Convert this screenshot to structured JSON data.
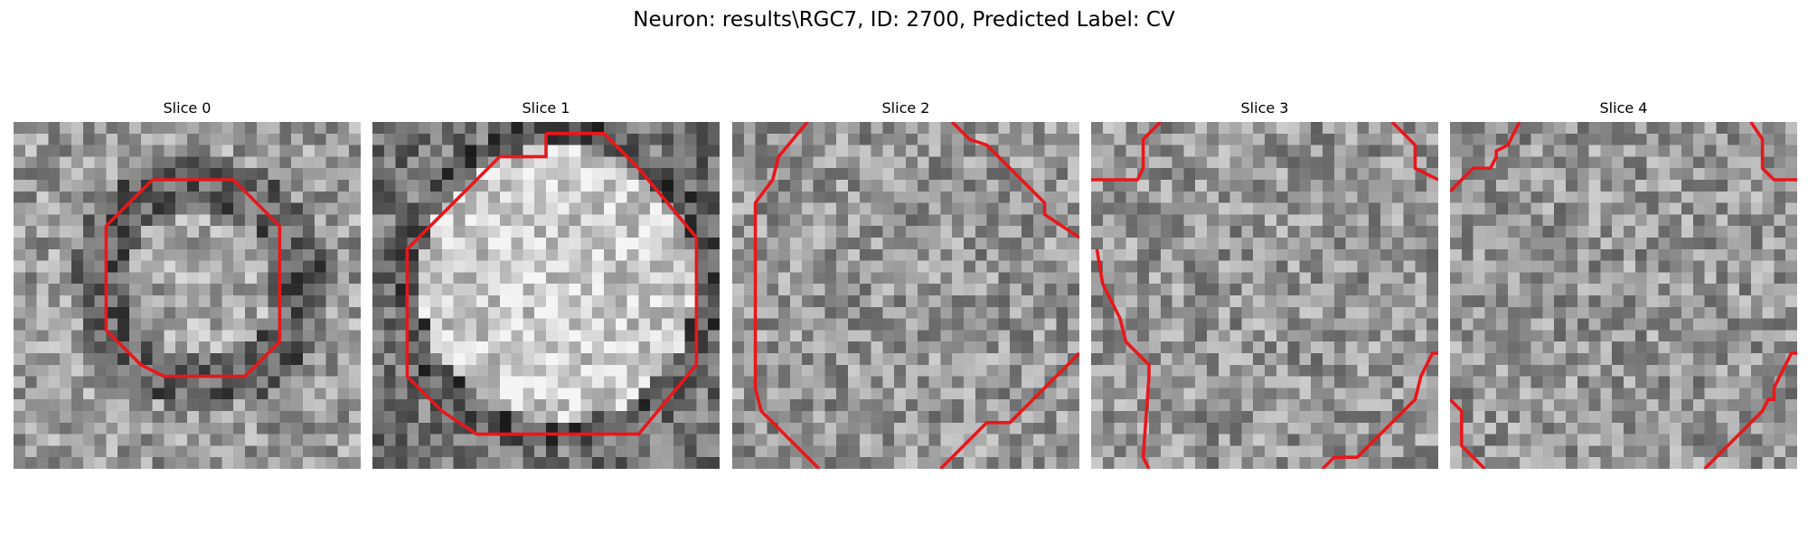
{
  "figure": {
    "title": "Neuron: results\\RGC7, ID: 2700, Predicted Label: CV"
  },
  "panels": [
    {
      "title": "Slice 0",
      "image": "grayscale-cell-slice",
      "contour_color": "#e8171b"
    },
    {
      "title": "Slice 1",
      "image": "grayscale-cell-slice",
      "contour_color": "#e8171b"
    },
    {
      "title": "Slice 2",
      "image": "grayscale-cell-slice",
      "contour_color": "#e8171b"
    },
    {
      "title": "Slice 3",
      "image": "grayscale-cell-slice",
      "contour_color": "#e8171b"
    },
    {
      "title": "Slice 4",
      "image": "grayscale-cell-slice",
      "contour_color": "#e8171b"
    }
  ]
}
